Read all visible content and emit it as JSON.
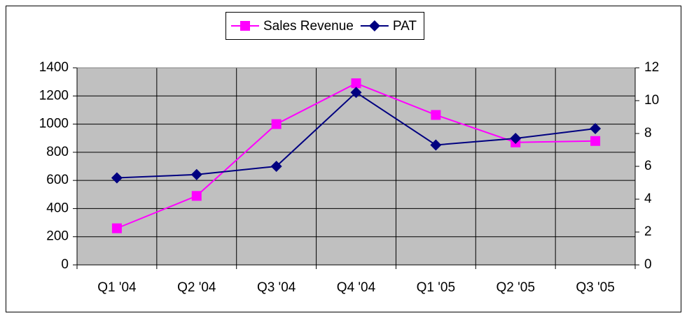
{
  "chart_data": {
    "type": "line",
    "categories": [
      "Q1 '04",
      "Q2 '04",
      "Q3 '04",
      "Q4 '04",
      "Q1 '05",
      "Q2 '05",
      "Q3 '05"
    ],
    "series": [
      {
        "name": "Sales Revenue",
        "color": "#ff00ff",
        "marker": "square",
        "values": [
          260,
          490,
          1000,
          1290,
          1065,
          870,
          880
        ]
      },
      {
        "name": "PAT",
        "color": "#000080",
        "marker": "diamond",
        "axis": "y2",
        "values": [
          5.3,
          5.5,
          6.0,
          10.5,
          7.3,
          7.7,
          8.3
        ]
      }
    ],
    "ylim": [
      0,
      1400
    ],
    "yticks": [
      0,
      200,
      400,
      600,
      800,
      1000,
      1200,
      1400
    ],
    "y2lim": [
      0,
      12
    ],
    "y2ticks": [
      0,
      2,
      4,
      6,
      8,
      10,
      12
    ],
    "grid": true,
    "legend": "top",
    "plot_background": "#c0c0c0"
  }
}
